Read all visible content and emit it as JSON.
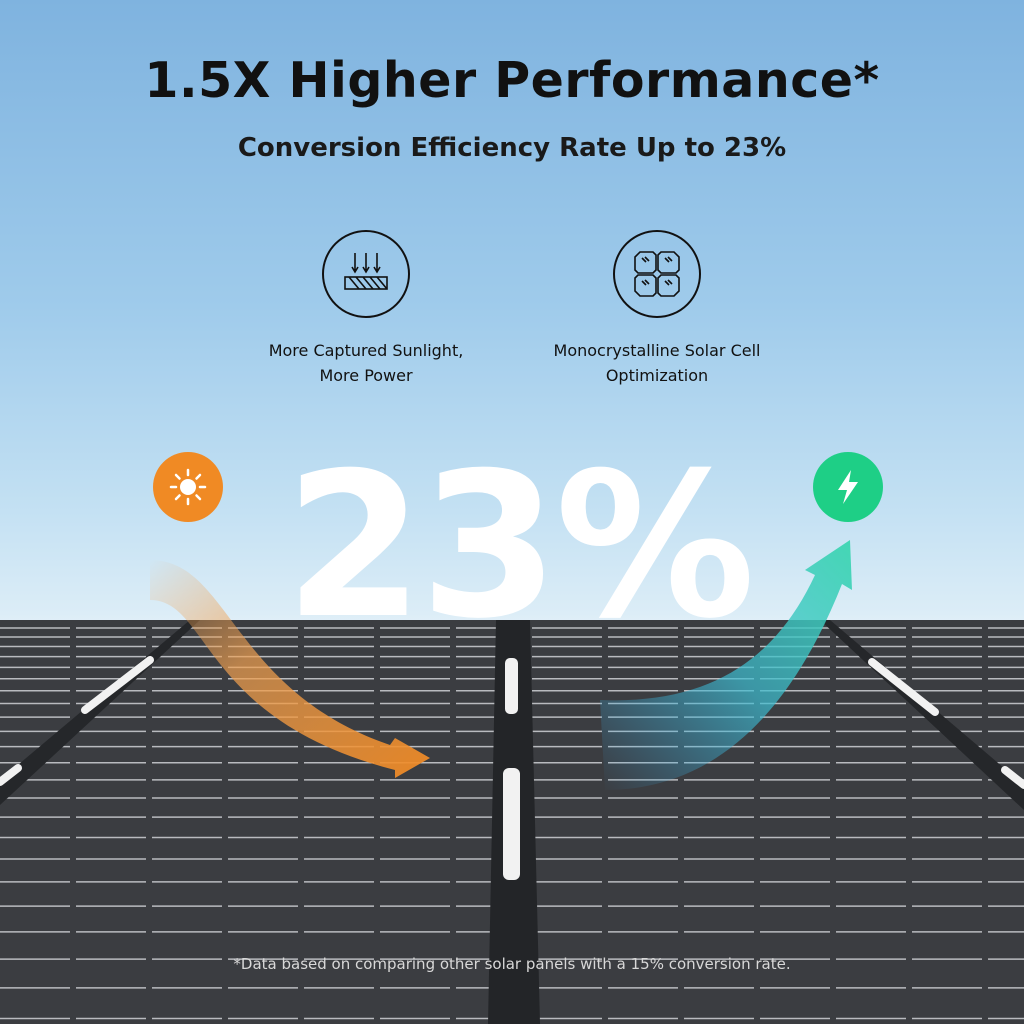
{
  "title": "1.5X Higher Performance*",
  "subtitle": "Conversion Efficiency Rate Up to 23%",
  "features": [
    {
      "icon": "sunlight-absorb-icon",
      "line1": "More Captured Sunlight,",
      "line2": "More Power"
    },
    {
      "icon": "monocrystalline-cell-icon",
      "line1": "Monocrystalline Solar  Cell",
      "line2": "Optimization"
    }
  ],
  "big_value": "23%",
  "badges": {
    "left_icon": "sun-icon",
    "left_color": "#f08a24",
    "right_icon": "lightning-bolt-icon",
    "right_color": "#1ecf86"
  },
  "arrows": {
    "input_color": "#f0a050",
    "output_color": "#3cc9c0"
  },
  "footnote": "*Data based on comparing other solar panels with a 15% conversion rate."
}
